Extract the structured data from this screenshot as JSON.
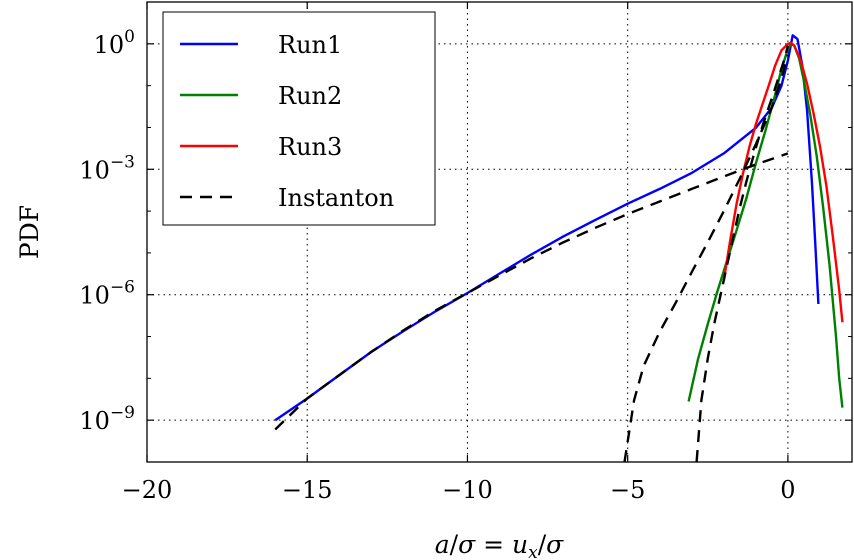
{
  "chart_data": {
    "type": "line",
    "title": "",
    "xlabel": "a/σ = u_x/σ",
    "ylabel": "PDF",
    "y_scale": "log",
    "xlim": [
      -20,
      2
    ],
    "ylim": [
      1e-10,
      10
    ],
    "grid": true,
    "grid_style": "dotted",
    "legend_position": "top-left",
    "x_ticks": [
      -20,
      -15,
      -10,
      -5,
      0
    ],
    "x_tick_labels": [
      "−20",
      "−15",
      "−10",
      "−5",
      "0"
    ],
    "y_ticks": [
      1e-09,
      1e-06,
      0.001,
      1
    ],
    "y_tick_labels": [
      {
        "base": "10",
        "exp": "−9"
      },
      {
        "base": "10",
        "exp": "−6"
      },
      {
        "base": "10",
        "exp": "−3"
      },
      {
        "base": "10",
        "exp": "0"
      }
    ],
    "series": [
      {
        "name": "Run1",
        "color": "#0000ff",
        "style": "solid",
        "points": [
          [
            -16.0,
            1e-09
          ],
          [
            -15.0,
            3.3e-09
          ],
          [
            -14.0,
            1.2e-08
          ],
          [
            -13.0,
            4.3e-08
          ],
          [
            -12.0,
            1.35e-07
          ],
          [
            -11.0,
            4e-07
          ],
          [
            -10.0,
            1.1e-06
          ],
          [
            -9.0,
            3.2e-06
          ],
          [
            -8.0,
            9.2e-06
          ],
          [
            -7.0,
            2.5e-05
          ],
          [
            -6.0,
            6.2e-05
          ],
          [
            -5.0,
            0.00015
          ],
          [
            -4.0,
            0.00034
          ],
          [
            -3.0,
            0.00082
          ],
          [
            -2.0,
            0.0024
          ],
          [
            -1.0,
            0.0098
          ],
          [
            -0.5,
            0.03
          ],
          [
            -0.2,
            0.1
          ],
          [
            0.0,
            0.4
          ],
          [
            0.15,
            1.6
          ],
          [
            0.3,
            1.3
          ],
          [
            0.45,
            0.3
          ],
          [
            0.6,
            0.025
          ],
          [
            0.75,
            0.0005
          ],
          [
            0.85,
            2e-05
          ],
          [
            0.95,
            6e-07
          ]
        ]
      },
      {
        "name": "Run2",
        "color": "#008000",
        "style": "solid",
        "points": [
          [
            -3.1,
            2.8e-09
          ],
          [
            -2.8,
            3e-08
          ],
          [
            -2.5,
            2e-07
          ],
          [
            -2.2,
            1.2e-06
          ],
          [
            -1.9,
            6.5e-06
          ],
          [
            -1.6,
            3.5e-05
          ],
          [
            -1.3,
            0.0002
          ],
          [
            -1.0,
            0.0014
          ],
          [
            -0.7,
            0.0085
          ],
          [
            -0.4,
            0.06
          ],
          [
            -0.2,
            0.25
          ],
          [
            0.0,
            0.75
          ],
          [
            0.1,
            1.0
          ],
          [
            0.2,
            0.9
          ],
          [
            0.35,
            0.45
          ],
          [
            0.5,
            0.13
          ],
          [
            0.7,
            0.02
          ],
          [
            0.9,
            0.002
          ],
          [
            1.1,
            0.00012
          ],
          [
            1.3,
            5e-06
          ],
          [
            1.5,
            1e-07
          ],
          [
            1.6,
            1e-08
          ],
          [
            1.7,
            2e-09
          ]
        ]
      },
      {
        "name": "Run3",
        "color": "#ff0000",
        "style": "solid",
        "points": [
          [
            -2.0,
            2.2e-06
          ],
          [
            -1.8,
            2e-05
          ],
          [
            -1.6,
            0.00015
          ],
          [
            -1.4,
            0.0008
          ],
          [
            -1.2,
            0.0035
          ],
          [
            -1.0,
            0.012
          ],
          [
            -0.8,
            0.035
          ],
          [
            -0.6,
            0.1
          ],
          [
            -0.4,
            0.3
          ],
          [
            -0.2,
            0.7
          ],
          [
            0.0,
            1.0
          ],
          [
            0.1,
            1.05
          ],
          [
            0.2,
            0.9
          ],
          [
            0.4,
            0.4
          ],
          [
            0.6,
            0.11
          ],
          [
            0.8,
            0.022
          ],
          [
            1.0,
            0.0035
          ],
          [
            1.2,
            0.0004
          ],
          [
            1.4,
            2.5e-05
          ],
          [
            1.6,
            1.3e-06
          ],
          [
            1.7,
            2.2e-07
          ]
        ]
      },
      {
        "name": "Instanton",
        "color": "#000000",
        "style": "dashed",
        "segments": [
          [
            [
              -16.0,
              6e-10
            ],
            [
              -15.0,
              3.3e-09
            ],
            [
              -14.0,
              1.2e-08
            ],
            [
              -13.0,
              4.3e-08
            ],
            [
              -12.0,
              1.4e-07
            ],
            [
              -11.0,
              4.2e-07
            ],
            [
              -10.0,
              1.1e-06
            ],
            [
              -9.0,
              2.9e-06
            ],
            [
              -8.0,
              7.5e-06
            ],
            [
              -7.0,
              1.8e-05
            ],
            [
              -6.0,
              4e-05
            ],
            [
              -5.0,
              8.5e-05
            ],
            [
              -4.0,
              0.00017
            ],
            [
              -3.0,
              0.00034
            ],
            [
              -2.0,
              0.00067
            ],
            [
              -1.0,
              0.0013
            ],
            [
              0.0,
              0.0024
            ]
          ],
          [
            [
              -5.1,
              1e-10
            ],
            [
              -4.8,
              3e-09
            ],
            [
              -4.5,
              2e-08
            ],
            [
              -4.0,
              1.3e-07
            ],
            [
              -3.5,
              6.5e-07
            ],
            [
              -3.0,
              3.5e-06
            ],
            [
              -2.5,
              1.8e-05
            ],
            [
              -2.0,
              0.0001
            ],
            [
              -1.5,
              0.0006
            ],
            [
              -1.0,
              0.004
            ],
            [
              -0.5,
              0.03
            ],
            [
              -0.2,
              0.15
            ],
            [
              0.0,
              0.55
            ]
          ],
          [
            [
              -2.85,
              1e-10
            ],
            [
              -2.7,
              3e-09
            ],
            [
              -2.5,
              3e-08
            ],
            [
              -2.3,
              2e-07
            ],
            [
              -2.1,
              1e-06
            ],
            [
              -1.9,
              5e-06
            ],
            [
              -1.7,
              2.5e-05
            ],
            [
              -1.5,
              0.00012
            ],
            [
              -1.3,
              0.0005
            ],
            [
              -1.1,
              0.0018
            ],
            [
              -0.9,
              0.006
            ],
            [
              -0.7,
              0.018
            ],
            [
              -0.5,
              0.05
            ],
            [
              -0.3,
              0.15
            ],
            [
              -0.1,
              0.45
            ],
            [
              0.0,
              0.9
            ]
          ]
        ]
      }
    ]
  }
}
